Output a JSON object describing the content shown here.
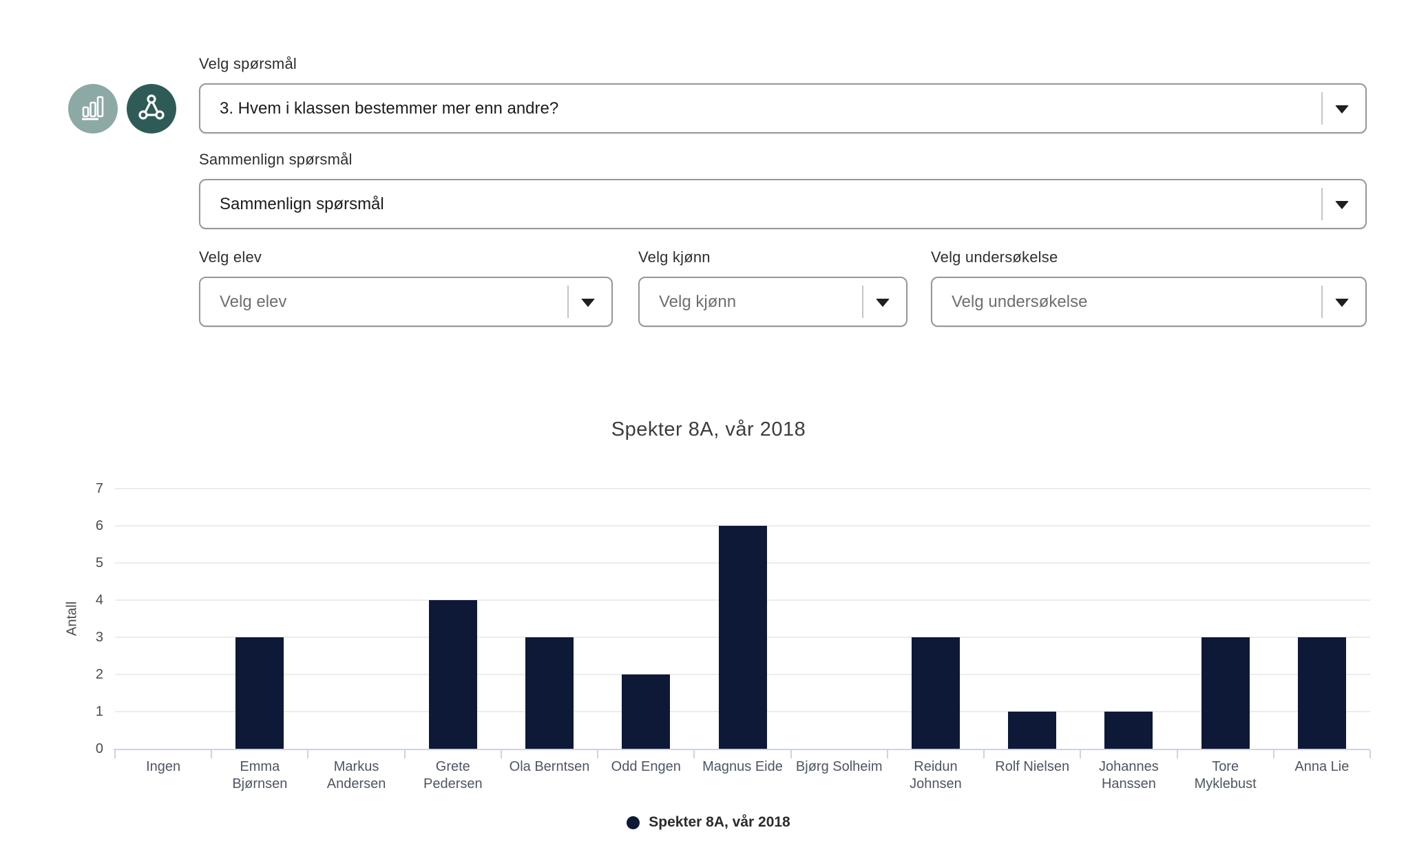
{
  "icons": {
    "bar_chart": "bar-chart-icon",
    "sociogram": "sociogram-network-icon",
    "dropdown_arrow": "chevron-down-icon"
  },
  "colors": {
    "icon_light_bg": "#8CA9A6",
    "icon_dark_bg": "#2F5B57",
    "bar": "#0e1937",
    "axis_line": "#c9d4e6",
    "gridline": "#ececec"
  },
  "controls": {
    "question": {
      "label": "Velg spørsmål",
      "value": "3. Hvem i klassen bestemmer mer enn andre?"
    },
    "compare": {
      "label": "Sammenlign spørsmål",
      "value": "Sammenlign spørsmål"
    },
    "student": {
      "label": "Velg elev",
      "placeholder": "Velg elev"
    },
    "gender": {
      "label": "Velg kjønn",
      "placeholder": "Velg kjønn"
    },
    "survey": {
      "label": "Velg undersøkelse",
      "placeholder": "Velg undersøkelse"
    }
  },
  "chart_data": {
    "type": "bar",
    "title": "Spekter 8A, vår 2018",
    "xlabel": "",
    "ylabel": "Antall",
    "ylim": [
      0,
      7
    ],
    "yticks": [
      0,
      1,
      2,
      3,
      4,
      5,
      6,
      7
    ],
    "grid": true,
    "legend_position": "bottom",
    "legend_label": "Spekter 8A, vår 2018",
    "bar_color": "#0e1937",
    "categories": [
      "Ingen",
      "Emma Bjørnsen",
      "Markus Andersen",
      "Grete Pedersen",
      "Ola Berntsen",
      "Odd Engen",
      "Magnus Eide",
      "Bjørg Solheim",
      "Reidun Johnsen",
      "Rolf Nielsen",
      "Johannes Hanssen",
      "Tore Myklebust",
      "Anna Lie"
    ],
    "label_lines": [
      [
        "Ingen"
      ],
      [
        "Emma",
        "Bjørnsen"
      ],
      [
        "Markus",
        "Andersen"
      ],
      [
        "Grete",
        "Pedersen"
      ],
      [
        "Ola Berntsen"
      ],
      [
        "Odd Engen"
      ],
      [
        "Magnus Eide"
      ],
      [
        "Bjørg Solheim"
      ],
      [
        "Reidun",
        "Johnsen"
      ],
      [
        "Rolf Nielsen"
      ],
      [
        "Johannes",
        "Hanssen"
      ],
      [
        "Tore",
        "Myklebust"
      ],
      [
        "Anna Lie"
      ]
    ],
    "values": [
      0,
      3,
      0,
      4,
      3,
      2,
      6,
      0,
      3,
      1,
      1,
      3,
      3
    ]
  }
}
